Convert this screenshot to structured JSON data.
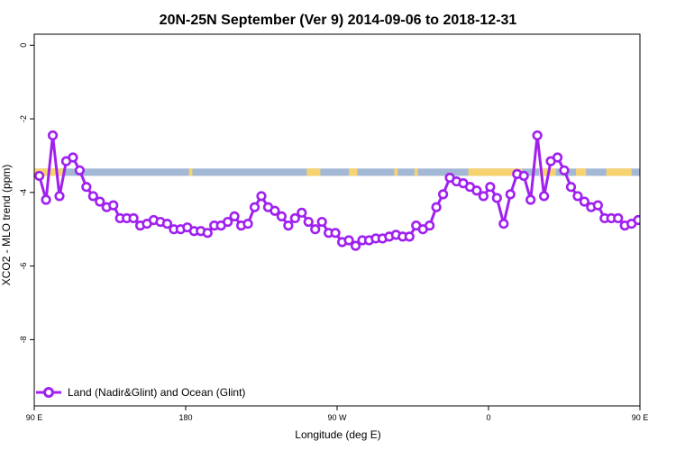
{
  "chart_data": {
    "type": "line",
    "title": "20N-25N September (Ver 9)   2014-09-06 to 2018-12-31",
    "xlabel": "Longitude (deg E)",
    "ylabel": "XCO2 - MLO trend (ppm)",
    "xlim": [
      90,
      450
    ],
    "ylim": [
      -9.8,
      0.3
    ],
    "x_ticks": [
      {
        "value": 90,
        "label": "90 E"
      },
      {
        "value": 180,
        "label": "180"
      },
      {
        "value": 270,
        "label": "90 W"
      },
      {
        "value": 360,
        "label": "0"
      },
      {
        "value": 450,
        "label": "90 E"
      },
      {
        "value": 540,
        "label": "180"
      }
    ],
    "y_ticks": [
      {
        "value": 0,
        "label": "0"
      },
      {
        "value": -2,
        "label": "-2"
      },
      {
        "value": -4,
        "label": "-4"
      },
      {
        "value": -6,
        "label": "-6"
      },
      {
        "value": -8,
        "label": "-8"
      }
    ],
    "legend": {
      "position": "bottom-left",
      "label": "Land (Nadir&Glint) and Ocean (Glint)"
    },
    "colors": {
      "line": "#a020f0",
      "ocean": "#a3b8d5",
      "land": "#f6d36f",
      "frame": "#000000"
    },
    "map_strip_y": [
      -3.35,
      -3.55
    ],
    "land_segments": [
      [
        90,
        107
      ],
      [
        182,
        184
      ],
      [
        252,
        260
      ],
      [
        278,
        280
      ],
      [
        277,
        282
      ],
      [
        304,
        306
      ],
      [
        316,
        318
      ],
      [
        348,
        380
      ],
      [
        390,
        400
      ],
      [
        412,
        418
      ],
      [
        430,
        445
      ],
      [
        450,
        458
      ]
    ],
    "series": [
      {
        "name": "Land (Nadir&Glint) and Ocean (Glint)",
        "x": [
          93,
          97,
          101,
          105,
          109,
          113,
          117,
          121,
          125,
          129,
          133,
          137,
          141,
          145,
          149,
          153,
          157,
          161,
          165,
          169,
          173,
          177,
          181,
          185,
          189,
          193,
          197,
          201,
          205,
          209,
          213,
          217,
          221,
          225,
          229,
          233,
          237,
          241,
          245,
          249,
          253,
          257,
          261,
          265,
          269,
          273,
          277,
          281,
          285,
          289,
          293,
          297,
          301,
          305,
          309,
          313,
          317,
          321,
          325,
          329,
          333,
          337,
          341,
          345,
          349,
          353,
          357,
          361,
          365,
          369,
          373,
          377,
          381,
          385,
          389,
          393,
          397,
          401,
          405,
          409,
          413,
          417,
          421,
          425,
          429,
          433,
          437,
          441,
          445,
          449
        ],
        "y": [
          -3.55,
          -4.2,
          -2.45,
          -4.1,
          -3.15,
          -3.05,
          -3.4,
          -3.85,
          -4.1,
          -4.25,
          -4.4,
          -4.35,
          -4.7,
          -4.7,
          -4.7,
          -4.9,
          -4.85,
          -4.75,
          -4.8,
          -4.85,
          -5.0,
          -5.0,
          -4.95,
          -5.05,
          -5.05,
          -5.1,
          -4.9,
          -4.9,
          -4.8,
          -4.65,
          -4.9,
          -4.85,
          -4.4,
          -4.1,
          -4.4,
          -4.5,
          -4.65,
          -4.9,
          -4.7,
          -4.55,
          -4.8,
          -5.0,
          -4.8,
          -5.1,
          -5.1,
          -5.35,
          -5.3,
          -5.45,
          -5.3,
          -5.3,
          -5.25,
          -5.25,
          -5.2,
          -5.15,
          -5.2,
          -5.2,
          -4.9,
          -5.0,
          -4.9,
          -4.4,
          -4.05,
          -3.6,
          -3.7,
          -3.75,
          -3.85,
          -3.95,
          -4.1,
          -3.85,
          -4.15,
          -4.85,
          -4.05,
          -3.5,
          -3.55,
          -4.2,
          -2.45,
          -4.1,
          -3.15,
          -3.05,
          -3.4,
          -3.85,
          -4.1,
          -4.25,
          -4.4,
          -4.35,
          -4.7,
          -4.7,
          -4.7,
          -4.9,
          -4.85,
          -4.75
        ]
      }
    ]
  }
}
